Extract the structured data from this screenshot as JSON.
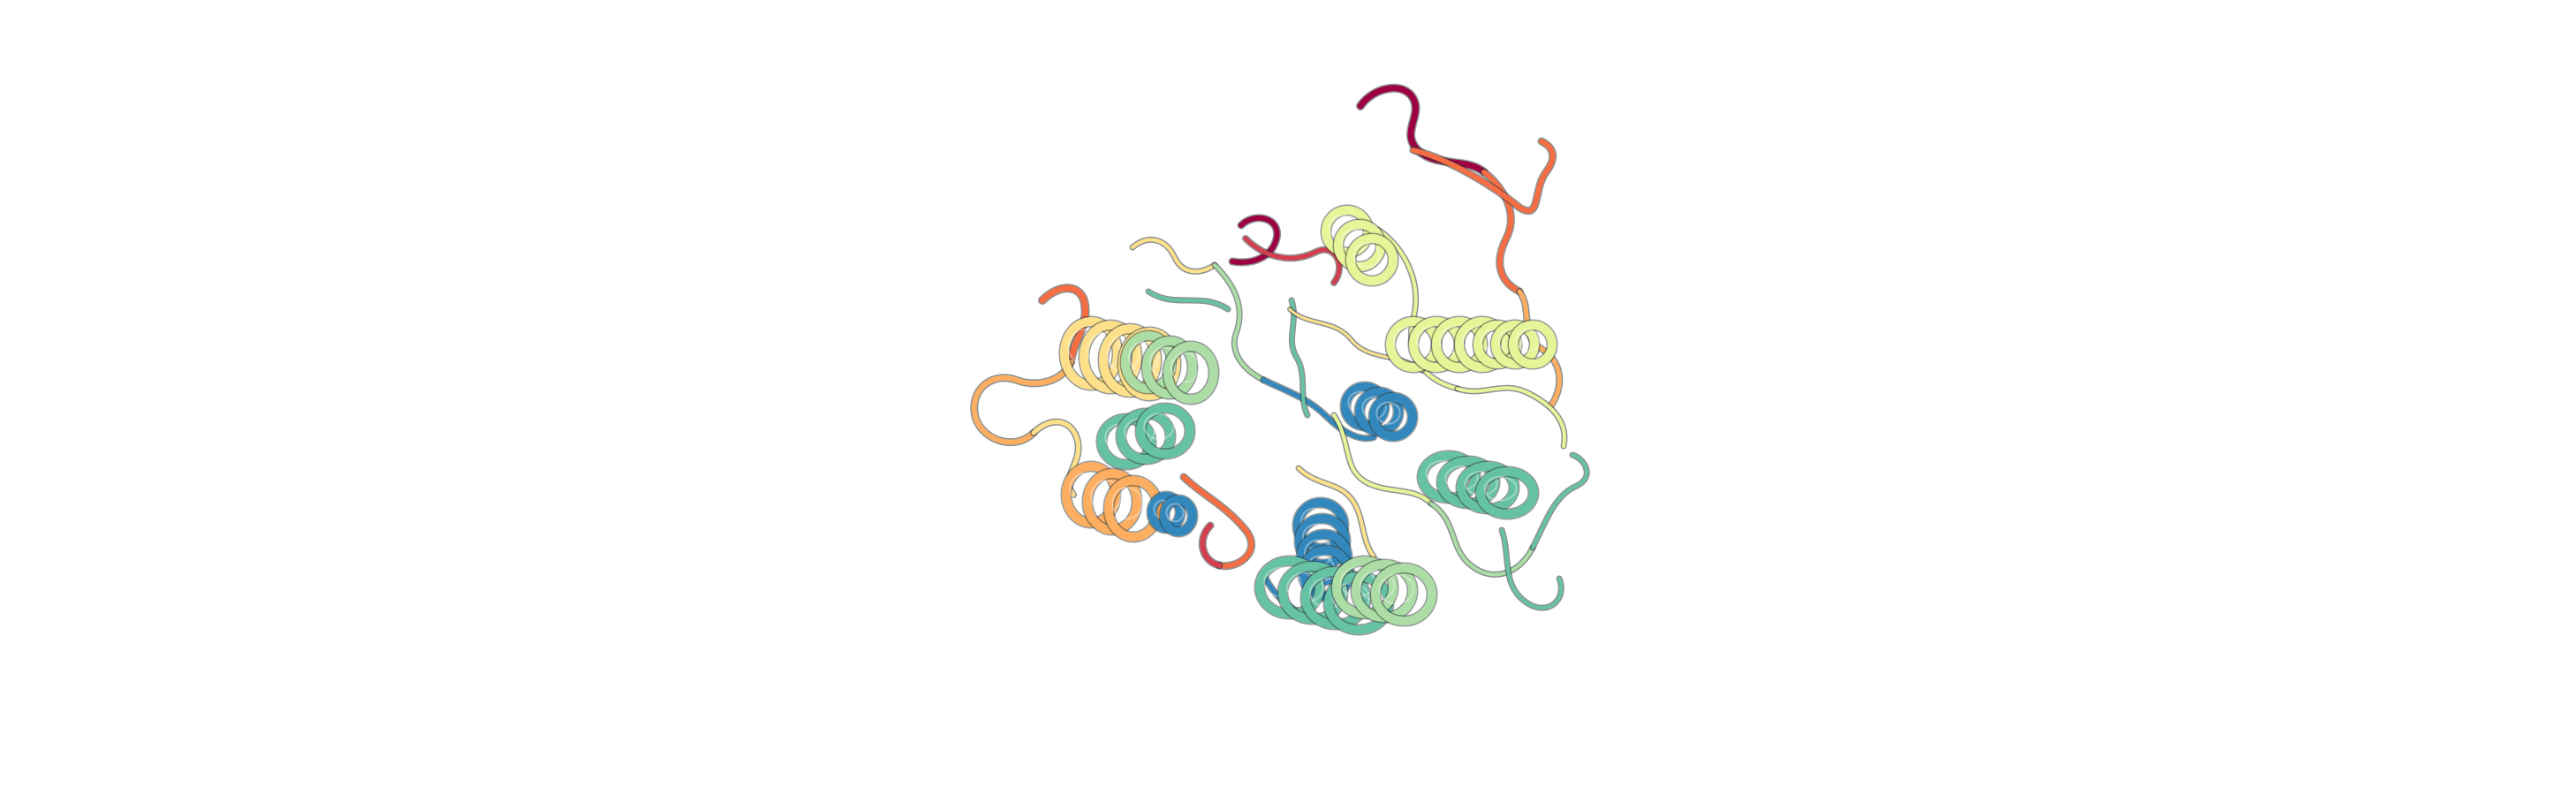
{
  "viewer": {
    "background_color": "#ffffff",
    "representation": "cartoon",
    "color_scheme": "spectral"
  },
  "structure": {
    "palette": [
      "#9e0142",
      "#d53e4f",
      "#f46d43",
      "#fdae61",
      "#fee08b",
      "#e6f598",
      "#abdda4",
      "#66c2a5",
      "#3288bd",
      "#5e4fa2"
    ],
    "ribbon_shading": "#2f3a3a"
  }
}
